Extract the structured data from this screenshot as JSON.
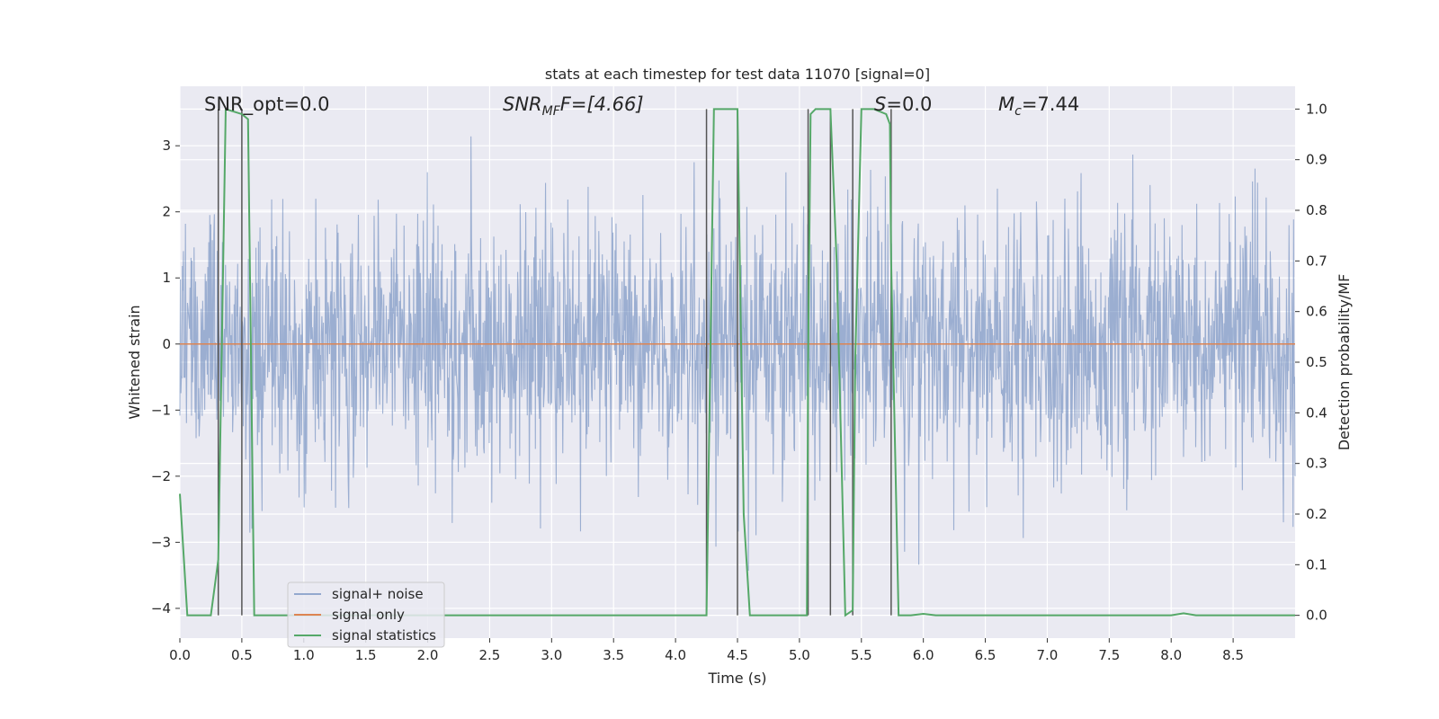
{
  "chart_data": {
    "type": "line",
    "title": "stats at each timestep for test data 11070 [signal=0]",
    "xlabel": "Time (s)",
    "ylabel": "Whitened strain",
    "y2label": "Detection probability/MF",
    "xlim": [
      0,
      9
    ],
    "ylim": [
      -4.45,
      3.9
    ],
    "y2lim": [
      -0.045,
      1.045
    ],
    "xticks": [
      "0.0",
      "0.5",
      "1.0",
      "1.5",
      "2.0",
      "2.5",
      "3.0",
      "3.5",
      "4.0",
      "4.5",
      "5.0",
      "5.5",
      "6.0",
      "6.5",
      "7.0",
      "7.5",
      "8.0",
      "8.5"
    ],
    "yticks": [
      "3",
      "2",
      "1",
      "0",
      "−1",
      "−2",
      "−3",
      "−4"
    ],
    "y2ticks": [
      "1.0",
      "0.9",
      "0.8",
      "0.7",
      "0.6",
      "0.5",
      "0.4",
      "0.3",
      "0.2",
      "0.1",
      "0.0"
    ],
    "grid": true,
    "legend_position": "lower-left",
    "annotations": {
      "snr_opt": "SNR_opt=0.0",
      "snr_mf_main": "SNR",
      "snr_mf_sub": "MF",
      "snr_mf_value": "F=[4.66]",
      "s_main": "S",
      "s_value": "=0.0",
      "mc_main": "M",
      "mc_sub": "c",
      "mc_value": "=7.44"
    },
    "vertical_markers_x": [
      0.31,
      0.5,
      4.25,
      4.5,
      5.07,
      5.25,
      5.43,
      5.74
    ],
    "series": [
      {
        "name": "signal+ noise",
        "axis": "left",
        "color": "#4c72b0",
        "noise_model": {
          "n_points": 2200,
          "sigma": 0.95,
          "clip": 3.6
        },
        "typical_range": [
          -2.5,
          2.8
        ]
      },
      {
        "name": "signal only",
        "axis": "left",
        "color": "#dd8452",
        "x": [
          0,
          9
        ],
        "y": [
          0,
          0
        ]
      },
      {
        "name": "signal statistics",
        "axis": "right",
        "color": "#55a868",
        "x": [
          0.0,
          0.06,
          0.15,
          0.25,
          0.31,
          0.37,
          0.5,
          0.55,
          0.6,
          0.7,
          0.8,
          4.2,
          4.25,
          4.31,
          4.35,
          4.5,
          4.55,
          4.6,
          4.65,
          4.8,
          5.06,
          5.07,
          5.09,
          5.13,
          5.2,
          5.25,
          5.3,
          5.37,
          5.43,
          5.45,
          5.5,
          5.6,
          5.7,
          5.73,
          5.74,
          5.8,
          5.9,
          6.0,
          6.1,
          6.3,
          8.0,
          8.1,
          8.2,
          9.0
        ],
        "y": [
          0.24,
          0.0,
          0.0,
          0.0,
          0.11,
          1.0,
          0.99,
          0.98,
          0.0,
          0.0,
          0.0,
          0.0,
          0.0,
          1.0,
          1.0,
          1.0,
          0.2,
          0.0,
          0.0,
          0.0,
          0.0,
          0.5,
          0.99,
          1.0,
          1.0,
          1.0,
          0.7,
          0.0,
          0.01,
          0.5,
          1.0,
          1.0,
          0.99,
          0.97,
          0.7,
          0.0,
          0.0,
          0.003,
          0.0,
          0.0,
          0.0,
          0.004,
          0.0,
          0.0
        ]
      }
    ]
  }
}
